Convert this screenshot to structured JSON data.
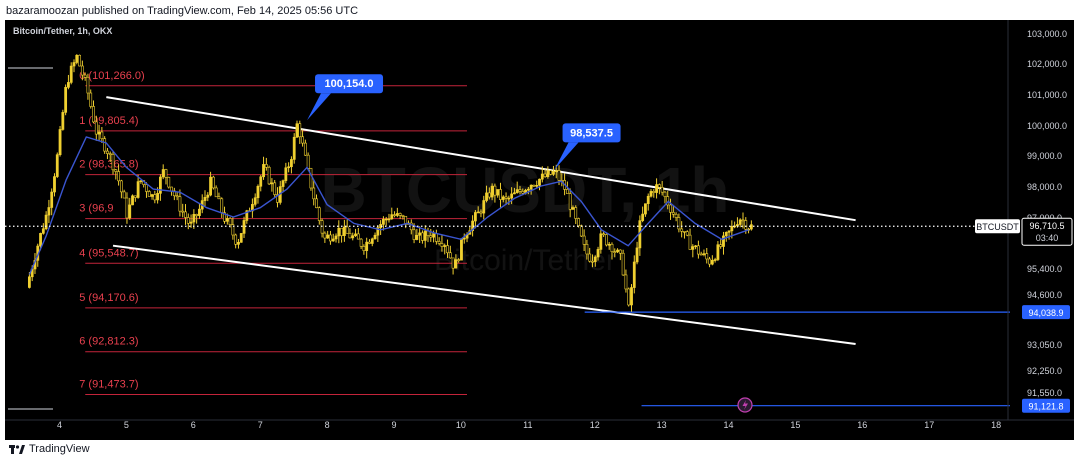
{
  "header": {
    "publish_line": "bazaramoozan published on TradingView.com, Feb 14, 2025 05:56 UTC"
  },
  "footer": {
    "brand": "TradingView",
    "logo_icon": "tradingview-logo-icon"
  },
  "colors": {
    "background": "#000000",
    "candle_up": "#f0d030",
    "candle_down": "#f0d030",
    "ema_line": "#3a55d0",
    "channel_line": "#ffffff",
    "fib_line": "#c3243a",
    "fib_text": "#e8404e",
    "callout_bg": "#2962ff",
    "support_line": "#2962ff",
    "price_label_bg": "#d1d4dc"
  },
  "chart_data": {
    "type": "candlestick",
    "title": "Bitcoin/Tether, 1h, OKX",
    "watermark_symbol": "BTCUSDT, 1h",
    "watermark_name": "Bitcoin/Tether",
    "x_ticks": [
      "4",
      "5",
      "6",
      "7",
      "8",
      "9",
      "10",
      "11",
      "12",
      "13",
      "14",
      "15",
      "16",
      "17",
      "18"
    ],
    "y_ticks": [
      "103,000.0",
      "102,000.0",
      "101,000.0",
      "100,000.0",
      "99,000.0",
      "98,000.0",
      "97,000.0",
      "95,400.0",
      "94,600.0",
      "93,050.0",
      "92,250.0",
      "91,550.0"
    ],
    "y_tick_values": [
      103000,
      102000,
      101000,
      100000,
      99000,
      98000,
      97000,
      95400,
      94600,
      93050,
      92250,
      91550
    ],
    "x_range_days": [
      3.5,
      19.0
    ],
    "current_price": {
      "symbol": "BTCUSDT",
      "value": "96,710.5",
      "countdown": "03:40",
      "price": 96710.5
    },
    "fibonacci_levels": [
      {
        "label": "0 (101,266.0)",
        "price": 101266.0
      },
      {
        "label": "1 (99,805.4)",
        "price": 99805.4
      },
      {
        "label": "2 (98,365.8)",
        "price": 98365.8
      },
      {
        "label": "3 (96,9",
        "price": 96950.0
      },
      {
        "label": "4 (95,548.7)",
        "price": 95548.7
      },
      {
        "label": "5 (94,170.6)",
        "price": 94170.6
      },
      {
        "label": "6 (92,812.3)",
        "price": 92812.3
      },
      {
        "label": "7 (91,473.7)",
        "price": 91473.7
      }
    ],
    "callouts": [
      {
        "text": "100,154.0",
        "day": 7.7,
        "price": 100154.0
      },
      {
        "text": "98,537.5",
        "day": 11.4,
        "price": 98537.5
      }
    ],
    "support_lines": [
      {
        "label": "94,038.9",
        "price": 94038.9,
        "from_day": 11.85
      },
      {
        "label": "91,121.8",
        "price": 91121.8,
        "from_day": 12.7
      }
    ],
    "channel": {
      "upper": [
        [
          4.7,
          100900
        ],
        [
          15.9,
          96900
        ]
      ],
      "lower": [
        [
          4.8,
          96100
        ],
        [
          15.9,
          93050
        ]
      ]
    },
    "ohlc_path": [
      [
        3.55,
        94800
      ],
      [
        3.7,
        96000
      ],
      [
        3.85,
        97100
      ],
      [
        4.0,
        98800
      ],
      [
        4.15,
        101400
      ],
      [
        4.3,
        102200
      ],
      [
        4.45,
        101200
      ],
      [
        4.6,
        99700
      ],
      [
        4.75,
        99200
      ],
      [
        4.9,
        98400
      ],
      [
        5.05,
        97100
      ],
      [
        5.25,
        98200
      ],
      [
        5.45,
        97600
      ],
      [
        5.6,
        98500
      ],
      [
        5.8,
        97500
      ],
      [
        6.0,
        96700
      ],
      [
        6.15,
        97300
      ],
      [
        6.3,
        98100
      ],
      [
        6.5,
        97000
      ],
      [
        6.7,
        96200
      ],
      [
        6.9,
        97400
      ],
      [
        7.1,
        98600
      ],
      [
        7.3,
        97600
      ],
      [
        7.5,
        98900
      ],
      [
        7.6,
        100100
      ],
      [
        7.75,
        98500
      ],
      [
        7.9,
        97100
      ],
      [
        8.0,
        96300
      ],
      [
        8.2,
        96600
      ],
      [
        8.4,
        96400
      ],
      [
        8.6,
        96100
      ],
      [
        8.8,
        96700
      ],
      [
        9.0,
        97100
      ],
      [
        9.2,
        96900
      ],
      [
        9.4,
        96300
      ],
      [
        9.6,
        96500
      ],
      [
        9.8,
        96200
      ],
      [
        9.95,
        95400
      ],
      [
        10.1,
        96500
      ],
      [
        10.3,
        97100
      ],
      [
        10.5,
        97900
      ],
      [
        10.7,
        97500
      ],
      [
        10.9,
        97800
      ],
      [
        11.1,
        98100
      ],
      [
        11.3,
        98300
      ],
      [
        11.45,
        98450
      ],
      [
        11.6,
        97900
      ],
      [
        11.75,
        96900
      ],
      [
        11.9,
        95900
      ],
      [
        12.0,
        95700
      ],
      [
        12.15,
        96400
      ],
      [
        12.3,
        96100
      ],
      [
        12.45,
        95600
      ],
      [
        12.55,
        94100
      ],
      [
        12.7,
        96600
      ],
      [
        12.85,
        97700
      ],
      [
        12.95,
        98000
      ],
      [
        13.05,
        97800
      ],
      [
        13.2,
        97200
      ],
      [
        13.4,
        96300
      ],
      [
        13.6,
        95900
      ],
      [
        13.75,
        95600
      ],
      [
        13.9,
        96000
      ],
      [
        14.05,
        96500
      ],
      [
        14.2,
        97000
      ],
      [
        14.35,
        96700
      ]
    ],
    "ema_path": [
      [
        3.55,
        95200
      ],
      [
        3.8,
        96400
      ],
      [
        4.1,
        98200
      ],
      [
        4.4,
        99600
      ],
      [
        4.7,
        99400
      ],
      [
        5.0,
        98600
      ],
      [
        5.4,
        97900
      ],
      [
        5.8,
        97800
      ],
      [
        6.2,
        97300
      ],
      [
        6.6,
        97000
      ],
      [
        7.0,
        97300
      ],
      [
        7.4,
        97900
      ],
      [
        7.7,
        98600
      ],
      [
        8.0,
        97400
      ],
      [
        8.4,
        96800
      ],
      [
        8.8,
        96600
      ],
      [
        9.2,
        96800
      ],
      [
        9.6,
        96500
      ],
      [
        10.0,
        96300
      ],
      [
        10.4,
        97000
      ],
      [
        10.8,
        97600
      ],
      [
        11.2,
        98000
      ],
      [
        11.5,
        98150
      ],
      [
        11.8,
        97500
      ],
      [
        12.1,
        96600
      ],
      [
        12.5,
        96100
      ],
      [
        12.8,
        96800
      ],
      [
        13.1,
        97500
      ],
      [
        13.5,
        96800
      ],
      [
        13.9,
        96300
      ],
      [
        14.3,
        96600
      ]
    ]
  }
}
